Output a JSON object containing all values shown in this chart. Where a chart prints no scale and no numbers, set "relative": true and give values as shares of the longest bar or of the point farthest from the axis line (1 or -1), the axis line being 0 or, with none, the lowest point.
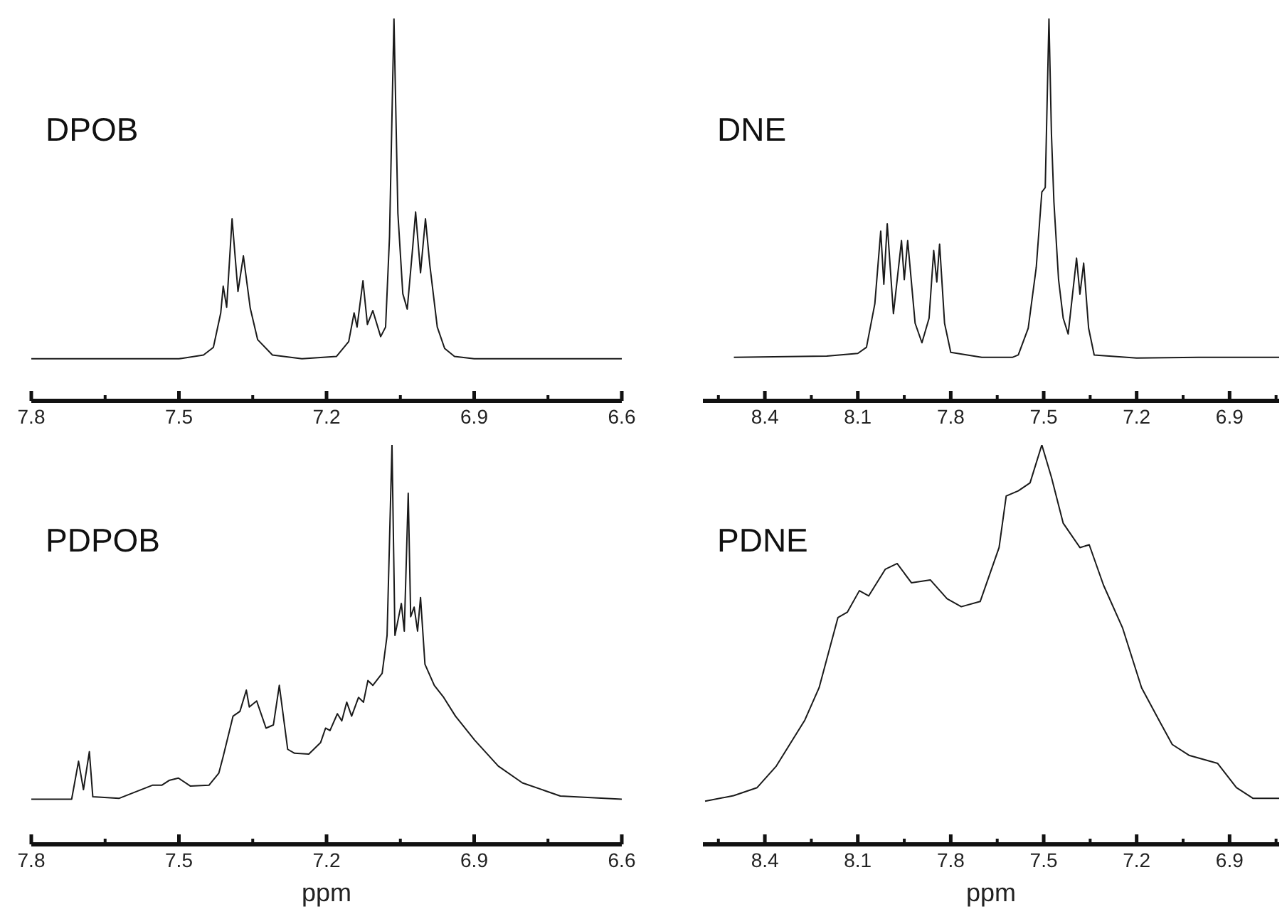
{
  "chart_data": [
    {
      "type": "line",
      "title": "DPOB",
      "relative": true,
      "tick_labels": "x",
      "xlim": [
        7.8,
        6.6
      ],
      "xticks": [
        7.8,
        {
          "value": 7.65,
          "label": null
        },
        7.5,
        {
          "value": 7.35,
          "label": null
        },
        7.2,
        {
          "value": 7.05,
          "label": null
        },
        6.9,
        {
          "value": 6.75,
          "label": null
        },
        6.6
      ],
      "x": [
        7.8,
        7.5,
        7.45,
        7.43,
        7.415,
        7.41,
        7.403,
        7.392,
        7.38,
        7.369,
        7.355,
        7.34,
        7.31,
        7.25,
        7.18,
        7.155,
        7.144,
        7.138,
        7.126,
        7.117,
        7.106,
        7.09,
        7.08,
        7.072,
        7.063,
        7.055,
        7.045,
        7.036,
        7.025,
        7.019,
        7.009,
        6.999,
        6.99,
        6.975,
        6.96,
        6.94,
        6.9,
        6.6
      ],
      "series": [
        {
          "color": "#1a1a1a",
          "values": [
            0.11,
            0.11,
            0.12,
            0.14,
            0.23,
            0.3,
            0.245,
            0.476,
            0.286,
            0.379,
            0.242,
            0.16,
            0.12,
            0.11,
            0.116,
            0.155,
            0.23,
            0.193,
            0.314,
            0.2,
            0.236,
            0.168,
            0.193,
            0.43,
            1.0,
            0.49,
            0.28,
            0.24,
            0.4,
            0.494,
            0.335,
            0.476,
            0.354,
            0.193,
            0.137,
            0.116,
            0.11,
            0.11
          ]
        }
      ]
    },
    {
      "type": "line",
      "title": "DNE",
      "relative": true,
      "tick_labels": "x",
      "xlim": [
        8.6,
        6.74
      ],
      "xticks": [
        {
          "value": 8.55,
          "label": null
        },
        8.4,
        {
          "value": 8.25,
          "label": null
        },
        8.1,
        {
          "value": 7.95,
          "label": null
        },
        7.8,
        {
          "value": 7.65,
          "label": null
        },
        7.5,
        {
          "value": 7.35,
          "label": null
        },
        7.2,
        {
          "value": 7.05,
          "label": null
        },
        6.9,
        {
          "value": 6.75,
          "label": null
        }
      ],
      "x": [
        8.5,
        8.2,
        8.1,
        8.072,
        8.045,
        8.026,
        8.016,
        8.005,
        7.985,
        7.959,
        7.95,
        7.939,
        7.915,
        7.893,
        7.87,
        7.855,
        7.845,
        7.836,
        7.82,
        7.8,
        7.7,
        7.6,
        7.582,
        7.55,
        7.524,
        7.506,
        7.495,
        7.483,
        7.475,
        7.467,
        7.452,
        7.437,
        7.421,
        7.394,
        7.383,
        7.371,
        7.355,
        7.337,
        7.2,
        7.0,
        6.74
      ],
      "series": [
        {
          "color": "#1a1a1a",
          "values": [
            0.114,
            0.117,
            0.124,
            0.14,
            0.254,
            0.444,
            0.305,
            0.463,
            0.228,
            0.419,
            0.317,
            0.419,
            0.203,
            0.152,
            0.216,
            0.393,
            0.311,
            0.41,
            0.203,
            0.127,
            0.114,
            0.114,
            0.12,
            0.19,
            0.349,
            0.546,
            0.558,
            1.0,
            0.698,
            0.52,
            0.317,
            0.216,
            0.175,
            0.373,
            0.279,
            0.36,
            0.19,
            0.12,
            0.112,
            0.114,
            0.114
          ]
        }
      ]
    },
    {
      "type": "line",
      "title": "PDPOB",
      "xlabel": "ppm",
      "relative": true,
      "tick_labels": "x",
      "xlim": [
        7.8,
        6.6
      ],
      "xticks": [
        7.8,
        {
          "value": 7.65,
          "label": null
        },
        7.5,
        {
          "value": 7.35,
          "label": null
        },
        7.2,
        {
          "value": 7.05,
          "label": null
        },
        6.9,
        {
          "value": 6.75,
          "label": null
        },
        6.6
      ],
      "x": [
        7.8,
        7.718,
        7.704,
        7.694,
        7.682,
        7.675,
        7.622,
        7.554,
        7.535,
        7.52,
        7.501,
        7.477,
        7.439,
        7.419,
        7.41,
        7.39,
        7.376,
        7.363,
        7.357,
        7.342,
        7.323,
        7.308,
        7.296,
        7.279,
        7.265,
        7.236,
        7.212,
        7.202,
        7.193,
        7.178,
        7.169,
        7.159,
        7.149,
        7.135,
        7.125,
        7.116,
        7.106,
        7.087,
        7.077,
        7.067,
        7.061,
        7.048,
        7.042,
        7.034,
        7.029,
        7.022,
        7.015,
        7.009,
        7.0,
        6.981,
        6.962,
        6.938,
        6.899,
        6.851,
        6.802,
        6.725,
        6.6
      ],
      "series": [
        {
          "color": "#1a1a1a",
          "values": [
            0.113,
            0.113,
            0.208,
            0.137,
            0.232,
            0.119,
            0.115,
            0.148,
            0.148,
            0.16,
            0.166,
            0.146,
            0.148,
            0.178,
            0.22,
            0.321,
            0.333,
            0.386,
            0.344,
            0.359,
            0.291,
            0.299,
            0.398,
            0.238,
            0.228,
            0.226,
            0.255,
            0.291,
            0.285,
            0.327,
            0.309,
            0.356,
            0.321,
            0.368,
            0.356,
            0.41,
            0.398,
            0.428,
            0.523,
            1.0,
            0.523,
            0.603,
            0.534,
            0.879,
            0.57,
            0.594,
            0.534,
            0.618,
            0.451,
            0.398,
            0.368,
            0.321,
            0.261,
            0.196,
            0.154,
            0.121,
            0.113
          ]
        }
      ]
    },
    {
      "type": "line",
      "title": "PDNE",
      "xlabel": "ppm",
      "relative": true,
      "tick_labels": "x",
      "xlim": [
        8.6,
        6.74
      ],
      "xticks": [
        {
          "value": 8.55,
          "label": null
        },
        8.4,
        {
          "value": 8.25,
          "label": null
        },
        8.1,
        {
          "value": 7.95,
          "label": null
        },
        7.8,
        {
          "value": 7.65,
          "label": null
        },
        7.5,
        {
          "value": 7.35,
          "label": null
        },
        7.2,
        {
          "value": 7.05,
          "label": null
        },
        6.9,
        {
          "value": 6.75,
          "label": null
        }
      ],
      "x": [
        8.593,
        8.501,
        8.425,
        8.363,
        8.271,
        8.225,
        8.164,
        8.134,
        8.095,
        8.065,
        8.011,
        7.973,
        7.927,
        7.866,
        7.812,
        7.766,
        7.705,
        7.644,
        7.621,
        7.582,
        7.544,
        7.506,
        7.475,
        7.437,
        7.383,
        7.353,
        7.307,
        7.245,
        7.184,
        7.123,
        7.085,
        7.031,
        6.939,
        6.878,
        6.824,
        6.74
      ],
      "series": [
        {
          "color": "#1a1a1a",
          "values": [
            0.108,
            0.122,
            0.142,
            0.196,
            0.311,
            0.392,
            0.568,
            0.581,
            0.635,
            0.622,
            0.689,
            0.703,
            0.655,
            0.662,
            0.615,
            0.595,
            0.608,
            0.743,
            0.872,
            0.885,
            0.905,
            1.0,
            0.919,
            0.804,
            0.743,
            0.75,
            0.649,
            0.541,
            0.392,
            0.304,
            0.25,
            0.223,
            0.203,
            0.142,
            0.115,
            0.115
          ]
        }
      ]
    }
  ]
}
